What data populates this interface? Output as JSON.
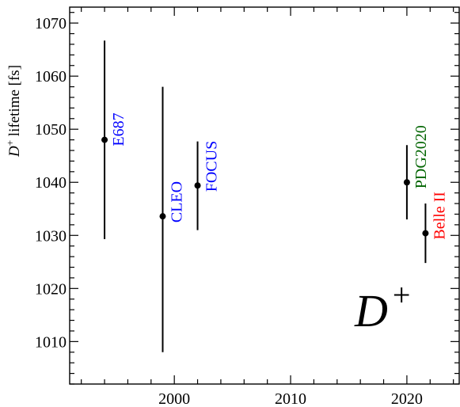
{
  "chart_data": {
    "type": "scatter",
    "ylabel": {
      "base": "D",
      "sup": "+",
      "rest": " lifetime [fs]"
    },
    "xlim": [
      1991,
      2024.5
    ],
    "ylim": [
      1002,
      1073
    ],
    "x_ticks": [
      2000,
      2010,
      2020
    ],
    "y_ticks": [
      1010,
      1020,
      1030,
      1040,
      1050,
      1060,
      1070
    ],
    "grid": false,
    "points": [
      {
        "label": "E687",
        "x": 1994,
        "y": 1048,
        "err_low": 1029.3,
        "err_high": 1066.7,
        "color": "#0000ff"
      },
      {
        "label": "CLEO",
        "x": 1999,
        "y": 1033.6,
        "err_low": 1008,
        "err_high": 1058,
        "color": "#0000ff"
      },
      {
        "label": "FOCUS",
        "x": 2002,
        "y": 1039.4,
        "err_low": 1031,
        "err_high": 1047.7,
        "color": "#0000ff"
      },
      {
        "label": "PDG2020",
        "x": 2020,
        "y": 1040,
        "err_low": 1033,
        "err_high": 1047,
        "color": "#006400"
      },
      {
        "label": "Belle II",
        "x": 2021.6,
        "y": 1030.4,
        "err_low": 1024.8,
        "err_high": 1036,
        "color": "#ff0000"
      }
    ],
    "annotation": {
      "base": "D",
      "sup": "+"
    }
  }
}
